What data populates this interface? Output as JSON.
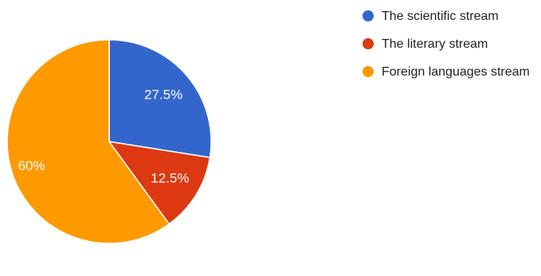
{
  "chart_data": {
    "type": "pie",
    "series": [
      {
        "name": "The scientific stream",
        "value": 27.5,
        "label": "27.5%",
        "color": "#3366cc"
      },
      {
        "name": "The literary stream",
        "value": 12.5,
        "label": "12.5%",
        "color": "#dc3912"
      },
      {
        "name": "Foreign languages stream",
        "value": 60,
        "label": "60%",
        "color": "#ff9900"
      }
    ],
    "legend_position": "top-right",
    "start_angle_deg": 90,
    "direction": "clockwise"
  }
}
